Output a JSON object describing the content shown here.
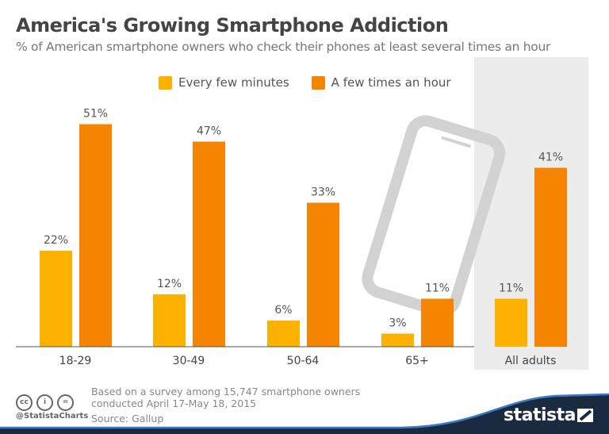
{
  "header": {
    "title": "America's Growing Smartphone Addiction",
    "subtitle": "% of American smartphone owners who check their phones at least several times an hour"
  },
  "chart_data": {
    "type": "bar",
    "categories": [
      "18-29",
      "30-49",
      "50-64",
      "65+",
      "All adults"
    ],
    "series": [
      {
        "name": "Every few minutes",
        "values": [
          22,
          12,
          6,
          3,
          11
        ],
        "color": "#FFB100"
      },
      {
        "name": "A few times an hour",
        "values": [
          51,
          47,
          33,
          11,
          41
        ],
        "color": "#F58500"
      }
    ],
    "value_suffix": "%",
    "ylim": [
      0,
      51
    ],
    "grid": false,
    "legend": "top-center",
    "highlight_category": "All adults"
  },
  "footer": {
    "note_line1": "Based on a survey among 15,747 smartphone owners",
    "note_line2": "conducted April 17-May 18, 2015",
    "source": "Source: Gallup",
    "handle": "@StatistaCharts",
    "brand": "statista",
    "cc_icons": [
      "cc",
      "by",
      "nd"
    ]
  }
}
